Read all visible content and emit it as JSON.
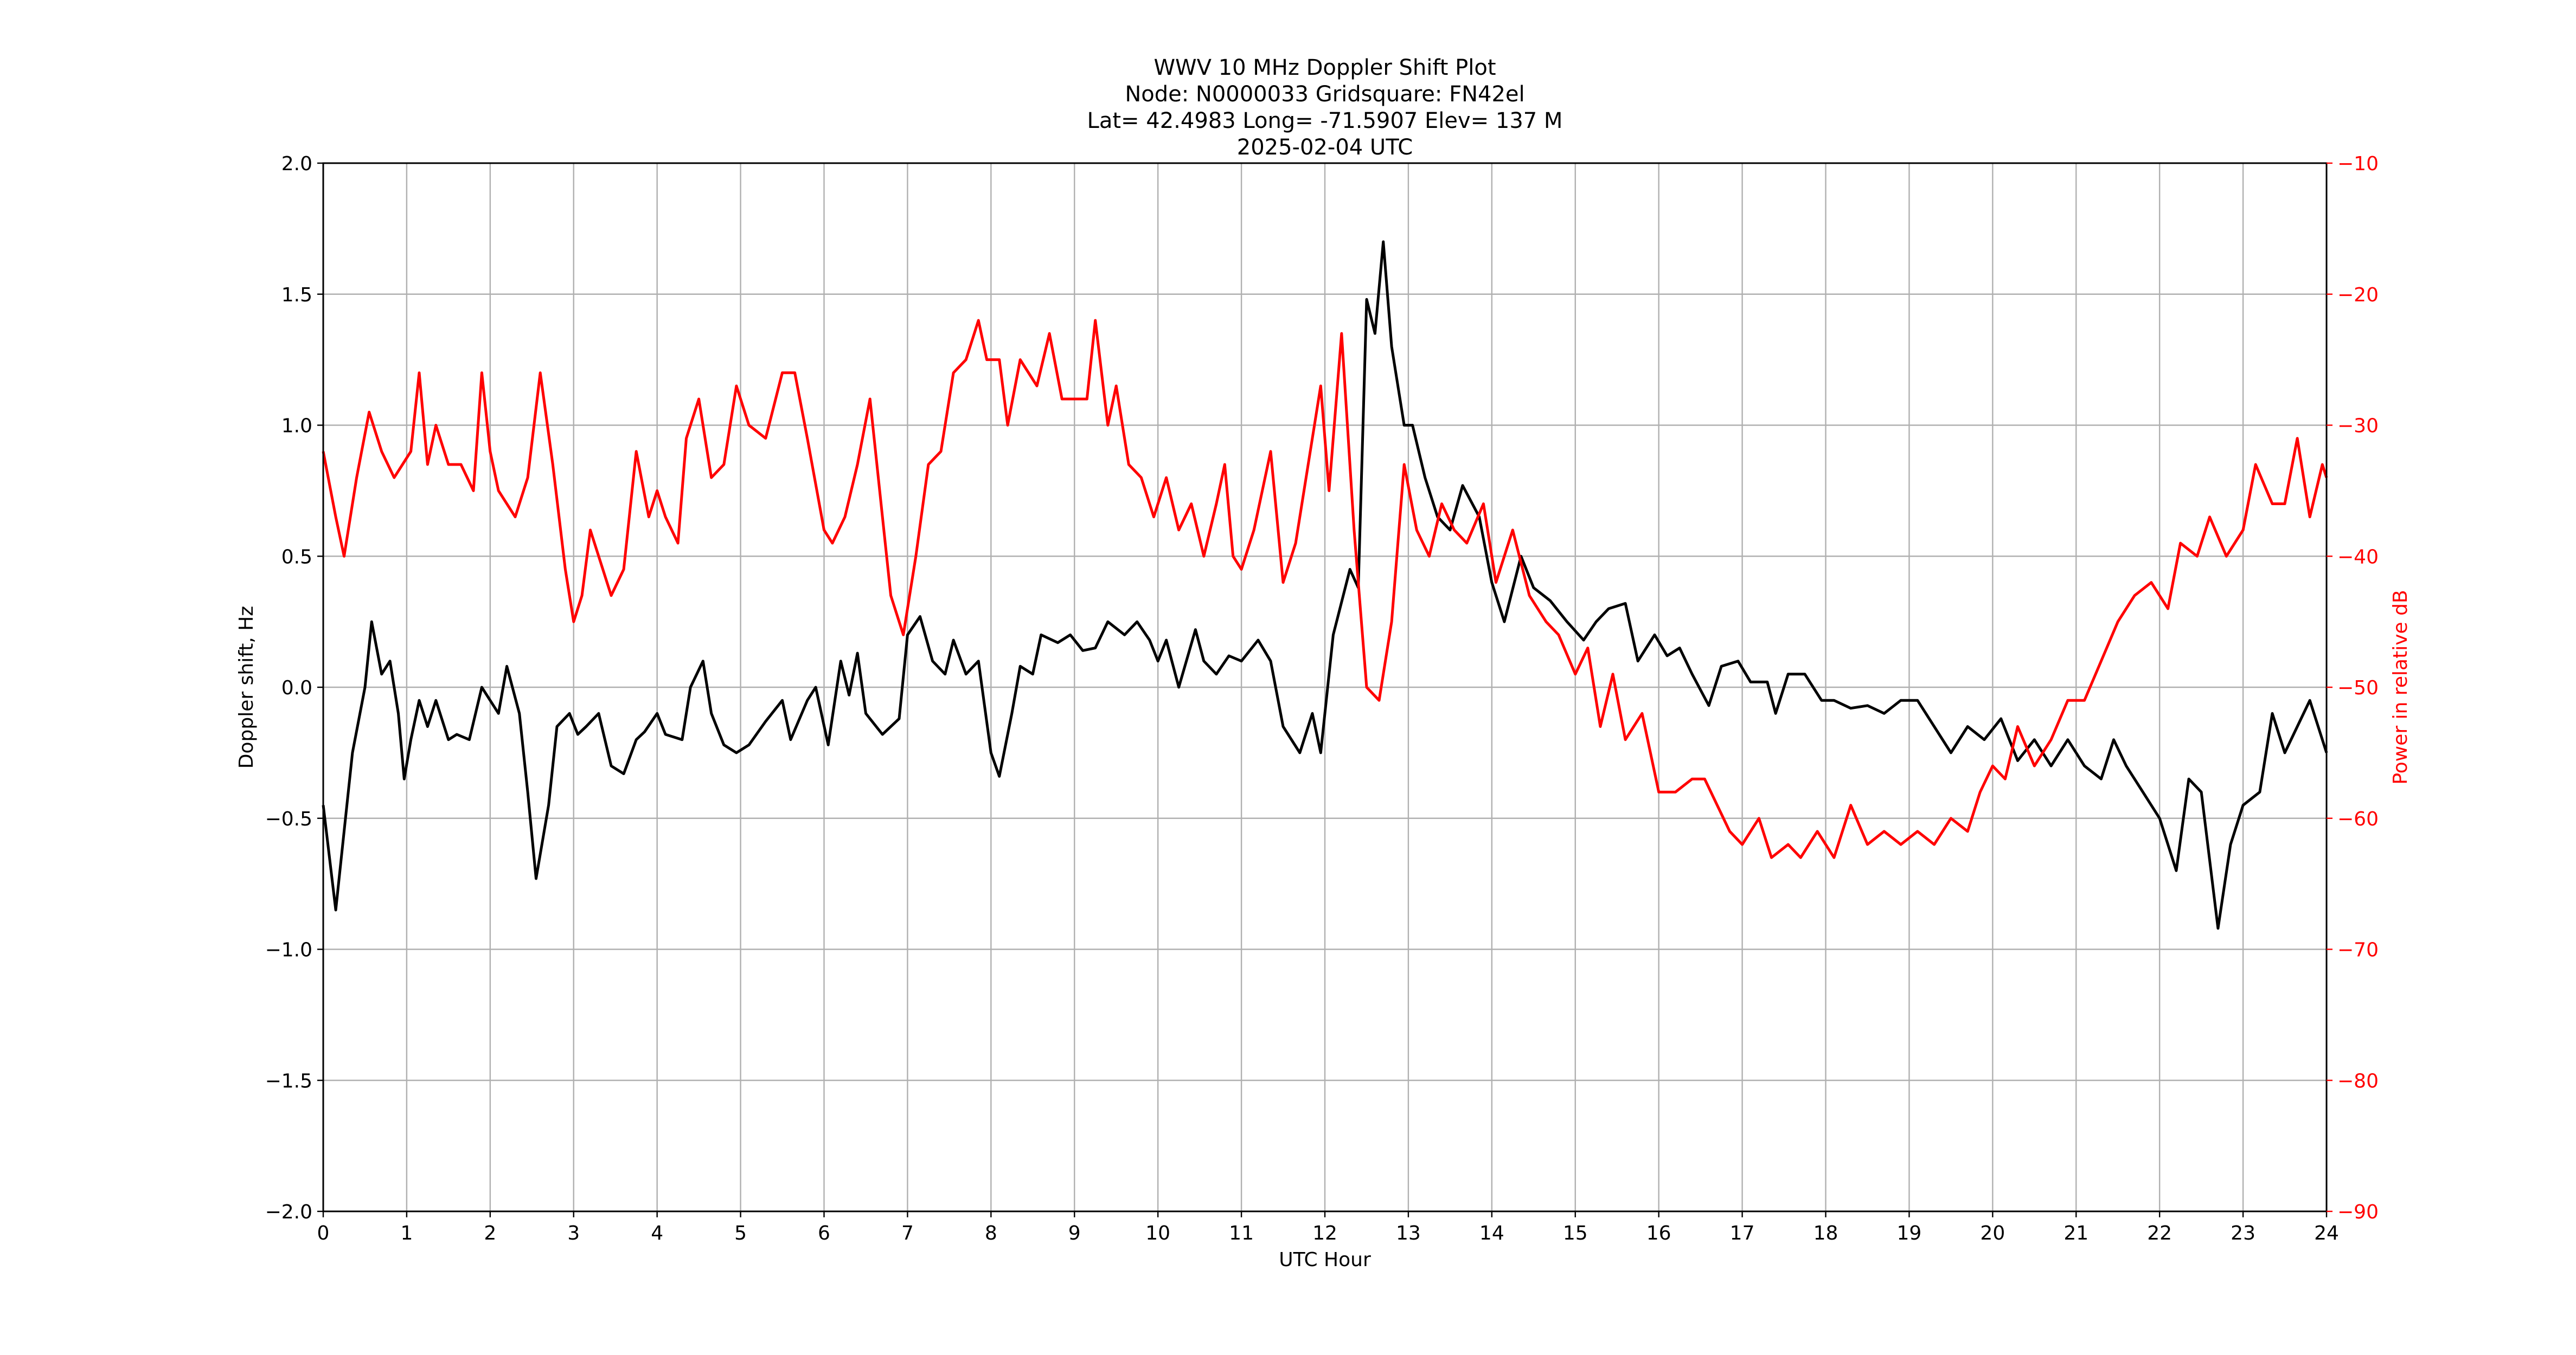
{
  "chart_data": {
    "type": "line",
    "title_lines": [
      "WWV 10 MHz Doppler Shift Plot",
      "Node:  N0000033     Gridsquare:  FN42el",
      "Lat= 42.4983    Long= -71.5907    Elev= 137 M",
      "2025-02-04  UTC"
    ],
    "xlabel": "UTC Hour",
    "ylabel": "Doppler shift, Hz",
    "y2label": "Power in relative dB",
    "xlim": [
      0,
      24
    ],
    "ylim": [
      -2.0,
      2.0
    ],
    "y2lim": [
      -90,
      -10
    ],
    "xticks": [
      "0",
      "1",
      "2",
      "3",
      "4",
      "5",
      "6",
      "7",
      "8",
      "9",
      "10",
      "11",
      "12",
      "13",
      "14",
      "15",
      "16",
      "17",
      "18",
      "19",
      "20",
      "21",
      "22",
      "23",
      "24"
    ],
    "yticks": [
      "−2.0",
      "−1.5",
      "−1.0",
      "−0.5",
      "0.0",
      "0.5",
      "1.0",
      "1.5",
      "2.0"
    ],
    "y2ticks": [
      "−90",
      "−80",
      "−70",
      "−60",
      "−50",
      "−40",
      "−30",
      "−20",
      "−10"
    ],
    "grid": true,
    "colors": {
      "doppler": "#000000",
      "power": "#ff0000",
      "grid": "#b0b0b0"
    },
    "series": [
      {
        "name": "Doppler shift",
        "axis": "left",
        "x": [
          0,
          0.15,
          0.25,
          0.35,
          0.5,
          0.58,
          0.7,
          0.8,
          0.9,
          0.97,
          1.05,
          1.15,
          1.25,
          1.35,
          1.5,
          1.6,
          1.75,
          1.9,
          2.0,
          2.1,
          2.2,
          2.35,
          2.45,
          2.55,
          2.7,
          2.8,
          2.95,
          3.05,
          3.15,
          3.3,
          3.45,
          3.6,
          3.75,
          3.85,
          4.0,
          4.1,
          4.3,
          4.4,
          4.55,
          4.65,
          4.8,
          4.95,
          5.1,
          5.3,
          5.5,
          5.6,
          5.8,
          5.9,
          6.05,
          6.2,
          6.3,
          6.4,
          6.5,
          6.7,
          6.9,
          7.0,
          7.15,
          7.3,
          7.45,
          7.55,
          7.7,
          7.85,
          8.0,
          8.1,
          8.25,
          8.35,
          8.5,
          8.6,
          8.8,
          8.95,
          9.1,
          9.25,
          9.4,
          9.6,
          9.75,
          9.9,
          10.0,
          10.1,
          10.25,
          10.45,
          10.55,
          10.7,
          10.85,
          11.0,
          11.2,
          11.35,
          11.5,
          11.7,
          11.85,
          11.95,
          12.1,
          12.3,
          12.4,
          12.5,
          12.6,
          12.7,
          12.8,
          12.95,
          13.05,
          13.2,
          13.35,
          13.5,
          13.65,
          13.85,
          14.0,
          14.15,
          14.35,
          14.5,
          14.7,
          14.9,
          15.1,
          15.25,
          15.4,
          15.6,
          15.75,
          15.95,
          16.1,
          16.25,
          16.4,
          16.6,
          16.75,
          16.95,
          17.1,
          17.3,
          17.4,
          17.55,
          17.75,
          17.95,
          18.1,
          18.3,
          18.5,
          18.7,
          18.9,
          19.1,
          19.3,
          19.5,
          19.7,
          19.9,
          20.1,
          20.3,
          20.5,
          20.7,
          20.9,
          21.1,
          21.3,
          21.45,
          21.6,
          21.8,
          22.0,
          22.2,
          22.35,
          22.5,
          22.7,
          22.85,
          23.0,
          23.2,
          23.35,
          23.5,
          23.65,
          23.8,
          24.0
        ],
        "y": [
          -0.45,
          -0.85,
          -0.55,
          -0.25,
          0.0,
          0.25,
          0.05,
          0.1,
          -0.1,
          -0.35,
          -0.2,
          -0.05,
          -0.15,
          -0.05,
          -0.2,
          -0.18,
          -0.2,
          0.0,
          -0.05,
          -0.1,
          0.08,
          -0.1,
          -0.4,
          -0.73,
          -0.45,
          -0.15,
          -0.1,
          -0.18,
          -0.15,
          -0.1,
          -0.3,
          -0.33,
          -0.2,
          -0.17,
          -0.1,
          -0.18,
          -0.2,
          0.0,
          0.1,
          -0.1,
          -0.22,
          -0.25,
          -0.22,
          -0.13,
          -0.05,
          -0.2,
          -0.05,
          0.0,
          -0.22,
          0.1,
          -0.03,
          0.13,
          -0.1,
          -0.18,
          -0.12,
          0.2,
          0.27,
          0.1,
          0.05,
          0.18,
          0.05,
          0.1,
          -0.25,
          -0.34,
          -0.1,
          0.08,
          0.05,
          0.2,
          0.17,
          0.2,
          0.14,
          0.15,
          0.25,
          0.2,
          0.25,
          0.18,
          0.1,
          0.18,
          0.0,
          0.22,
          0.1,
          0.05,
          0.12,
          0.1,
          0.18,
          0.1,
          -0.15,
          -0.25,
          -0.1,
          -0.25,
          0.2,
          0.45,
          0.38,
          1.48,
          1.35,
          1.7,
          1.3,
          1.0,
          1.0,
          0.8,
          0.65,
          0.6,
          0.77,
          0.65,
          0.4,
          0.25,
          0.5,
          0.38,
          0.33,
          0.25,
          0.18,
          0.25,
          0.3,
          0.32,
          0.1,
          0.2,
          0.12,
          0.15,
          0.05,
          -0.07,
          0.08,
          0.1,
          0.02,
          0.02,
          -0.1,
          0.05,
          0.05,
          -0.05,
          -0.05,
          -0.08,
          -0.07,
          -0.1,
          -0.05,
          -0.05,
          -0.15,
          -0.25,
          -0.15,
          -0.2,
          -0.12,
          -0.28,
          -0.2,
          -0.3,
          -0.2,
          -0.3,
          -0.35,
          -0.2,
          -0.3,
          -0.4,
          -0.5,
          -0.7,
          -0.35,
          -0.4,
          -0.92,
          -0.6,
          -0.45,
          -0.4,
          -0.1,
          -0.25,
          -0.15,
          -0.05,
          -0.25
        ]
      },
      {
        "name": "Power",
        "axis": "right",
        "x": [
          0,
          0.15,
          0.25,
          0.4,
          0.55,
          0.7,
          0.85,
          0.95,
          1.05,
          1.15,
          1.25,
          1.35,
          1.5,
          1.65,
          1.8,
          1.9,
          2.0,
          2.1,
          2.3,
          2.45,
          2.6,
          2.75,
          2.9,
          3.0,
          3.1,
          3.2,
          3.35,
          3.45,
          3.6,
          3.7,
          3.75,
          3.9,
          4.0,
          4.1,
          4.25,
          4.35,
          4.5,
          4.65,
          4.8,
          4.95,
          5.1,
          5.3,
          5.5,
          5.65,
          5.8,
          6.0,
          6.1,
          6.25,
          6.4,
          6.55,
          6.7,
          6.8,
          6.95,
          7.1,
          7.25,
          7.4,
          7.55,
          7.7,
          7.85,
          7.95,
          8.1,
          8.2,
          8.35,
          8.55,
          8.7,
          8.85,
          9.0,
          9.15,
          9.25,
          9.4,
          9.5,
          9.65,
          9.8,
          9.95,
          10.1,
          10.25,
          10.4,
          10.55,
          10.7,
          10.8,
          10.9,
          11.0,
          11.15,
          11.35,
          11.5,
          11.65,
          11.8,
          11.95,
          12.05,
          12.2,
          12.35,
          12.5,
          12.65,
          12.8,
          12.95,
          13.1,
          13.25,
          13.4,
          13.55,
          13.7,
          13.9,
          14.05,
          14.25,
          14.45,
          14.65,
          14.8,
          15.0,
          15.15,
          15.3,
          15.45,
          15.6,
          15.8,
          16.0,
          16.2,
          16.4,
          16.55,
          16.7,
          16.85,
          17.0,
          17.2,
          17.35,
          17.55,
          17.7,
          17.9,
          18.1,
          18.3,
          18.5,
          18.7,
          18.9,
          19.1,
          19.3,
          19.5,
          19.7,
          19.85,
          20.0,
          20.15,
          20.3,
          20.5,
          20.7,
          20.9,
          21.1,
          21.3,
          21.5,
          21.7,
          21.9,
          22.1,
          22.25,
          22.45,
          22.6,
          22.8,
          23.0,
          23.15,
          23.35,
          23.5,
          23.65,
          23.8,
          23.95,
          24.0
        ],
        "y": [
          -32,
          -37,
          -40,
          -34,
          -29,
          -32,
          -34,
          -33,
          -32,
          -26,
          -33,
          -30,
          -33,
          -33,
          -35,
          -26,
          -32,
          -35,
          -37,
          -34,
          -26,
          -33,
          -41,
          -45,
          -43,
          -38,
          -41,
          -43,
          -41,
          -35,
          -32,
          -37,
          -35,
          -37,
          -39,
          -31,
          -28,
          -34,
          -33,
          -27,
          -30,
          -31,
          -26,
          -26,
          -31,
          -38,
          -39,
          -37,
          -33,
          -28,
          -37,
          -43,
          -46,
          -40,
          -33,
          -32,
          -26,
          -25,
          -22,
          -25,
          -25,
          -30,
          -25,
          -27,
          -23,
          -28,
          -28,
          -28,
          -22,
          -30,
          -27,
          -33,
          -34,
          -37,
          -34,
          -38,
          -36,
          -40,
          -36,
          -33,
          -40,
          -41,
          -38,
          -32,
          -42,
          -39,
          -33,
          -27,
          -35,
          -23,
          -38,
          -50,
          -51,
          -45,
          -33,
          -38,
          -40,
          -36,
          -38,
          -39,
          -36,
          -42,
          -38,
          -43,
          -45,
          -46,
          -49,
          -47,
          -53,
          -49,
          -54,
          -52,
          -58,
          -58,
          -57,
          -57,
          -59,
          -61,
          -62,
          -60,
          -63,
          -62,
          -63,
          -61,
          -63,
          -59,
          -62,
          -61,
          -62,
          -61,
          -62,
          -60,
          -61,
          -58,
          -56,
          -57,
          -53,
          -56,
          -54,
          -51,
          -51,
          -48,
          -45,
          -43,
          -42,
          -44,
          -39,
          -40,
          -37,
          -40,
          -38,
          -33,
          -36,
          -36,
          -31,
          -37,
          -33,
          -34
        ]
      }
    ]
  }
}
